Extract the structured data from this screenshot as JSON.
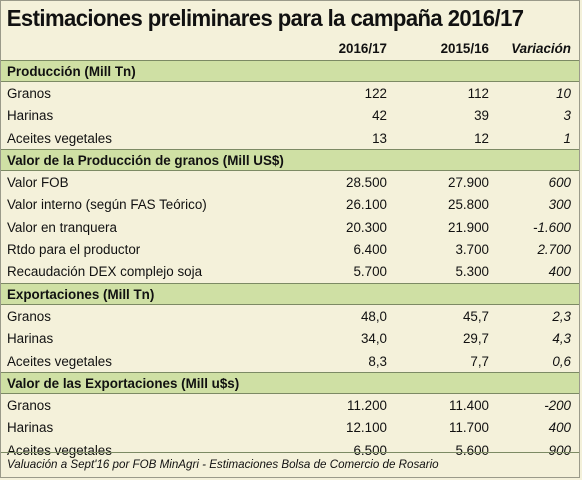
{
  "title": "Estimaciones preliminares para la campaña 2016/17",
  "columns": {
    "c1": "2016/17",
    "c2": "2015/16",
    "c3": "Variación"
  },
  "sections": [
    {
      "heading": "Producción (Mill Tn)",
      "rows": [
        {
          "label": "Granos",
          "c1": "122",
          "c2": "112",
          "c3": "10"
        },
        {
          "label": "Harinas",
          "c1": "42",
          "c2": "39",
          "c3": "3"
        },
        {
          "label": "Aceites vegetales",
          "c1": "13",
          "c2": "12",
          "c3": "1"
        }
      ]
    },
    {
      "heading": "Valor de la Producción de granos (Mill US$)",
      "rows": [
        {
          "label": "Valor FOB",
          "c1": "28.500",
          "c2": "27.900",
          "c3": "600"
        },
        {
          "label": "Valor interno (según FAS Teórico)",
          "c1": "26.100",
          "c2": "25.800",
          "c3": "300"
        },
        {
          "label": "Valor en tranquera",
          "c1": "20.300",
          "c2": "21.900",
          "c3": "-1.600"
        },
        {
          "label": "Rtdo para el productor",
          "c1": "6.400",
          "c2": "3.700",
          "c3": "2.700"
        },
        {
          "label": "Recaudación DEX complejo soja",
          "c1": "5.700",
          "c2": "5.300",
          "c3": "400"
        }
      ]
    },
    {
      "heading": "Exportaciones (Mill Tn)",
      "rows": [
        {
          "label": "Granos",
          "c1": "48,0",
          "c2": "45,7",
          "c3": "2,3"
        },
        {
          "label": "Harinas",
          "c1": "34,0",
          "c2": "29,7",
          "c3": "4,3"
        },
        {
          "label": "Aceites vegetales",
          "c1": "8,3",
          "c2": "7,7",
          "c3": "0,6"
        }
      ]
    },
    {
      "heading": "Valor de las Exportaciones (Mill u$s)",
      "rows": [
        {
          "label": "Granos",
          "c1": "11.200",
          "c2": "11.400",
          "c3": "-200"
        },
        {
          "label": "Harinas",
          "c1": "12.100",
          "c2": "11.700",
          "c3": "400"
        },
        {
          "label": "Aceites vegetales",
          "c1": "6.500",
          "c2": "5.600",
          "c3": "900"
        }
      ]
    }
  ],
  "footer": "Valuación a Sept'16 por FOB MinAgri - Estimaciones Bolsa de Comercio de Rosario"
}
